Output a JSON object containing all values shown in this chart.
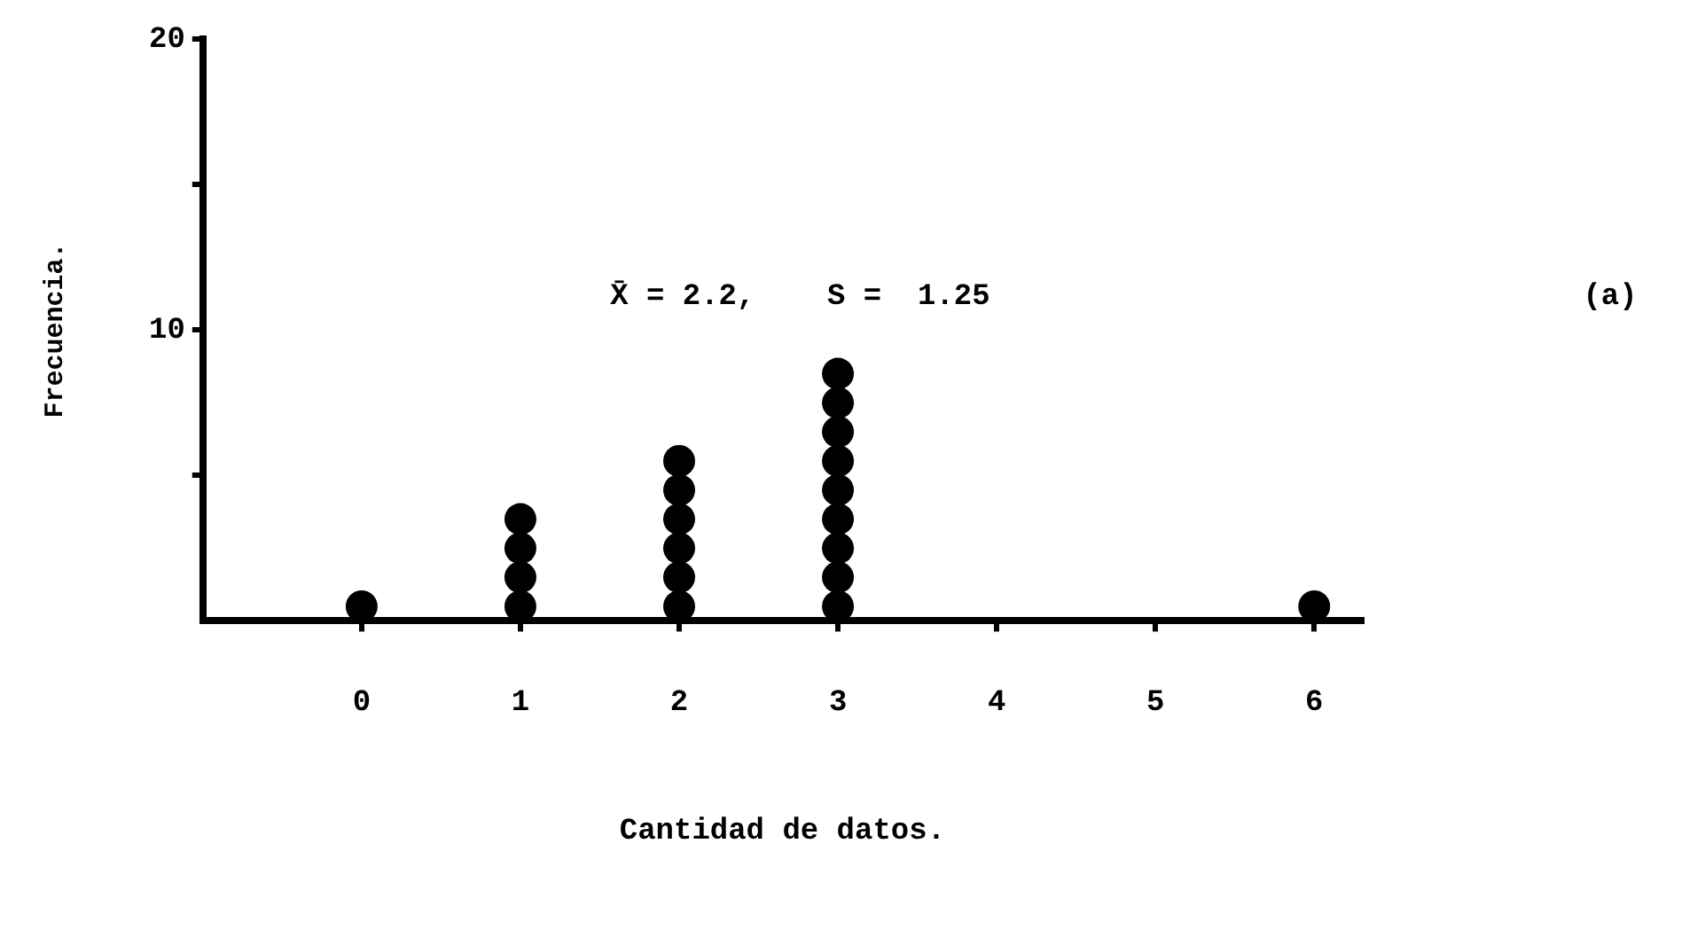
{
  "chart_data": {
    "type": "scatter",
    "xlabel": "Cantidad de datos.",
    "ylabel": "Frecuencia.",
    "annotations": [
      "X̄ = 2.2,    S =  1.25",
      "(a)"
    ],
    "xlim": [
      -1,
      6.3
    ],
    "xticks": [
      0,
      1,
      2,
      3,
      4,
      5,
      6
    ],
    "ylim": [
      0,
      20
    ],
    "yticks": [
      {
        "value": 5,
        "label": null
      },
      10,
      {
        "value": 15,
        "label": null
      },
      20
    ],
    "series": [
      {
        "color": "#000000",
        "x": [
          0,
          1,
          1,
          1,
          1,
          2,
          2,
          2,
          2,
          2,
          2,
          3,
          3,
          3,
          3,
          3,
          3,
          3,
          3,
          3,
          6
        ],
        "values": [
          0.5,
          0.5,
          1.5,
          2.5,
          3.5,
          0.5,
          1.5,
          2.5,
          3.5,
          4.5,
          5.5,
          0.5,
          1.5,
          2.5,
          3.5,
          4.5,
          5.5,
          6.5,
          7.5,
          8.5,
          0.5
        ]
      }
    ],
    "marker": "circle",
    "grid": false,
    "legend": false
  }
}
